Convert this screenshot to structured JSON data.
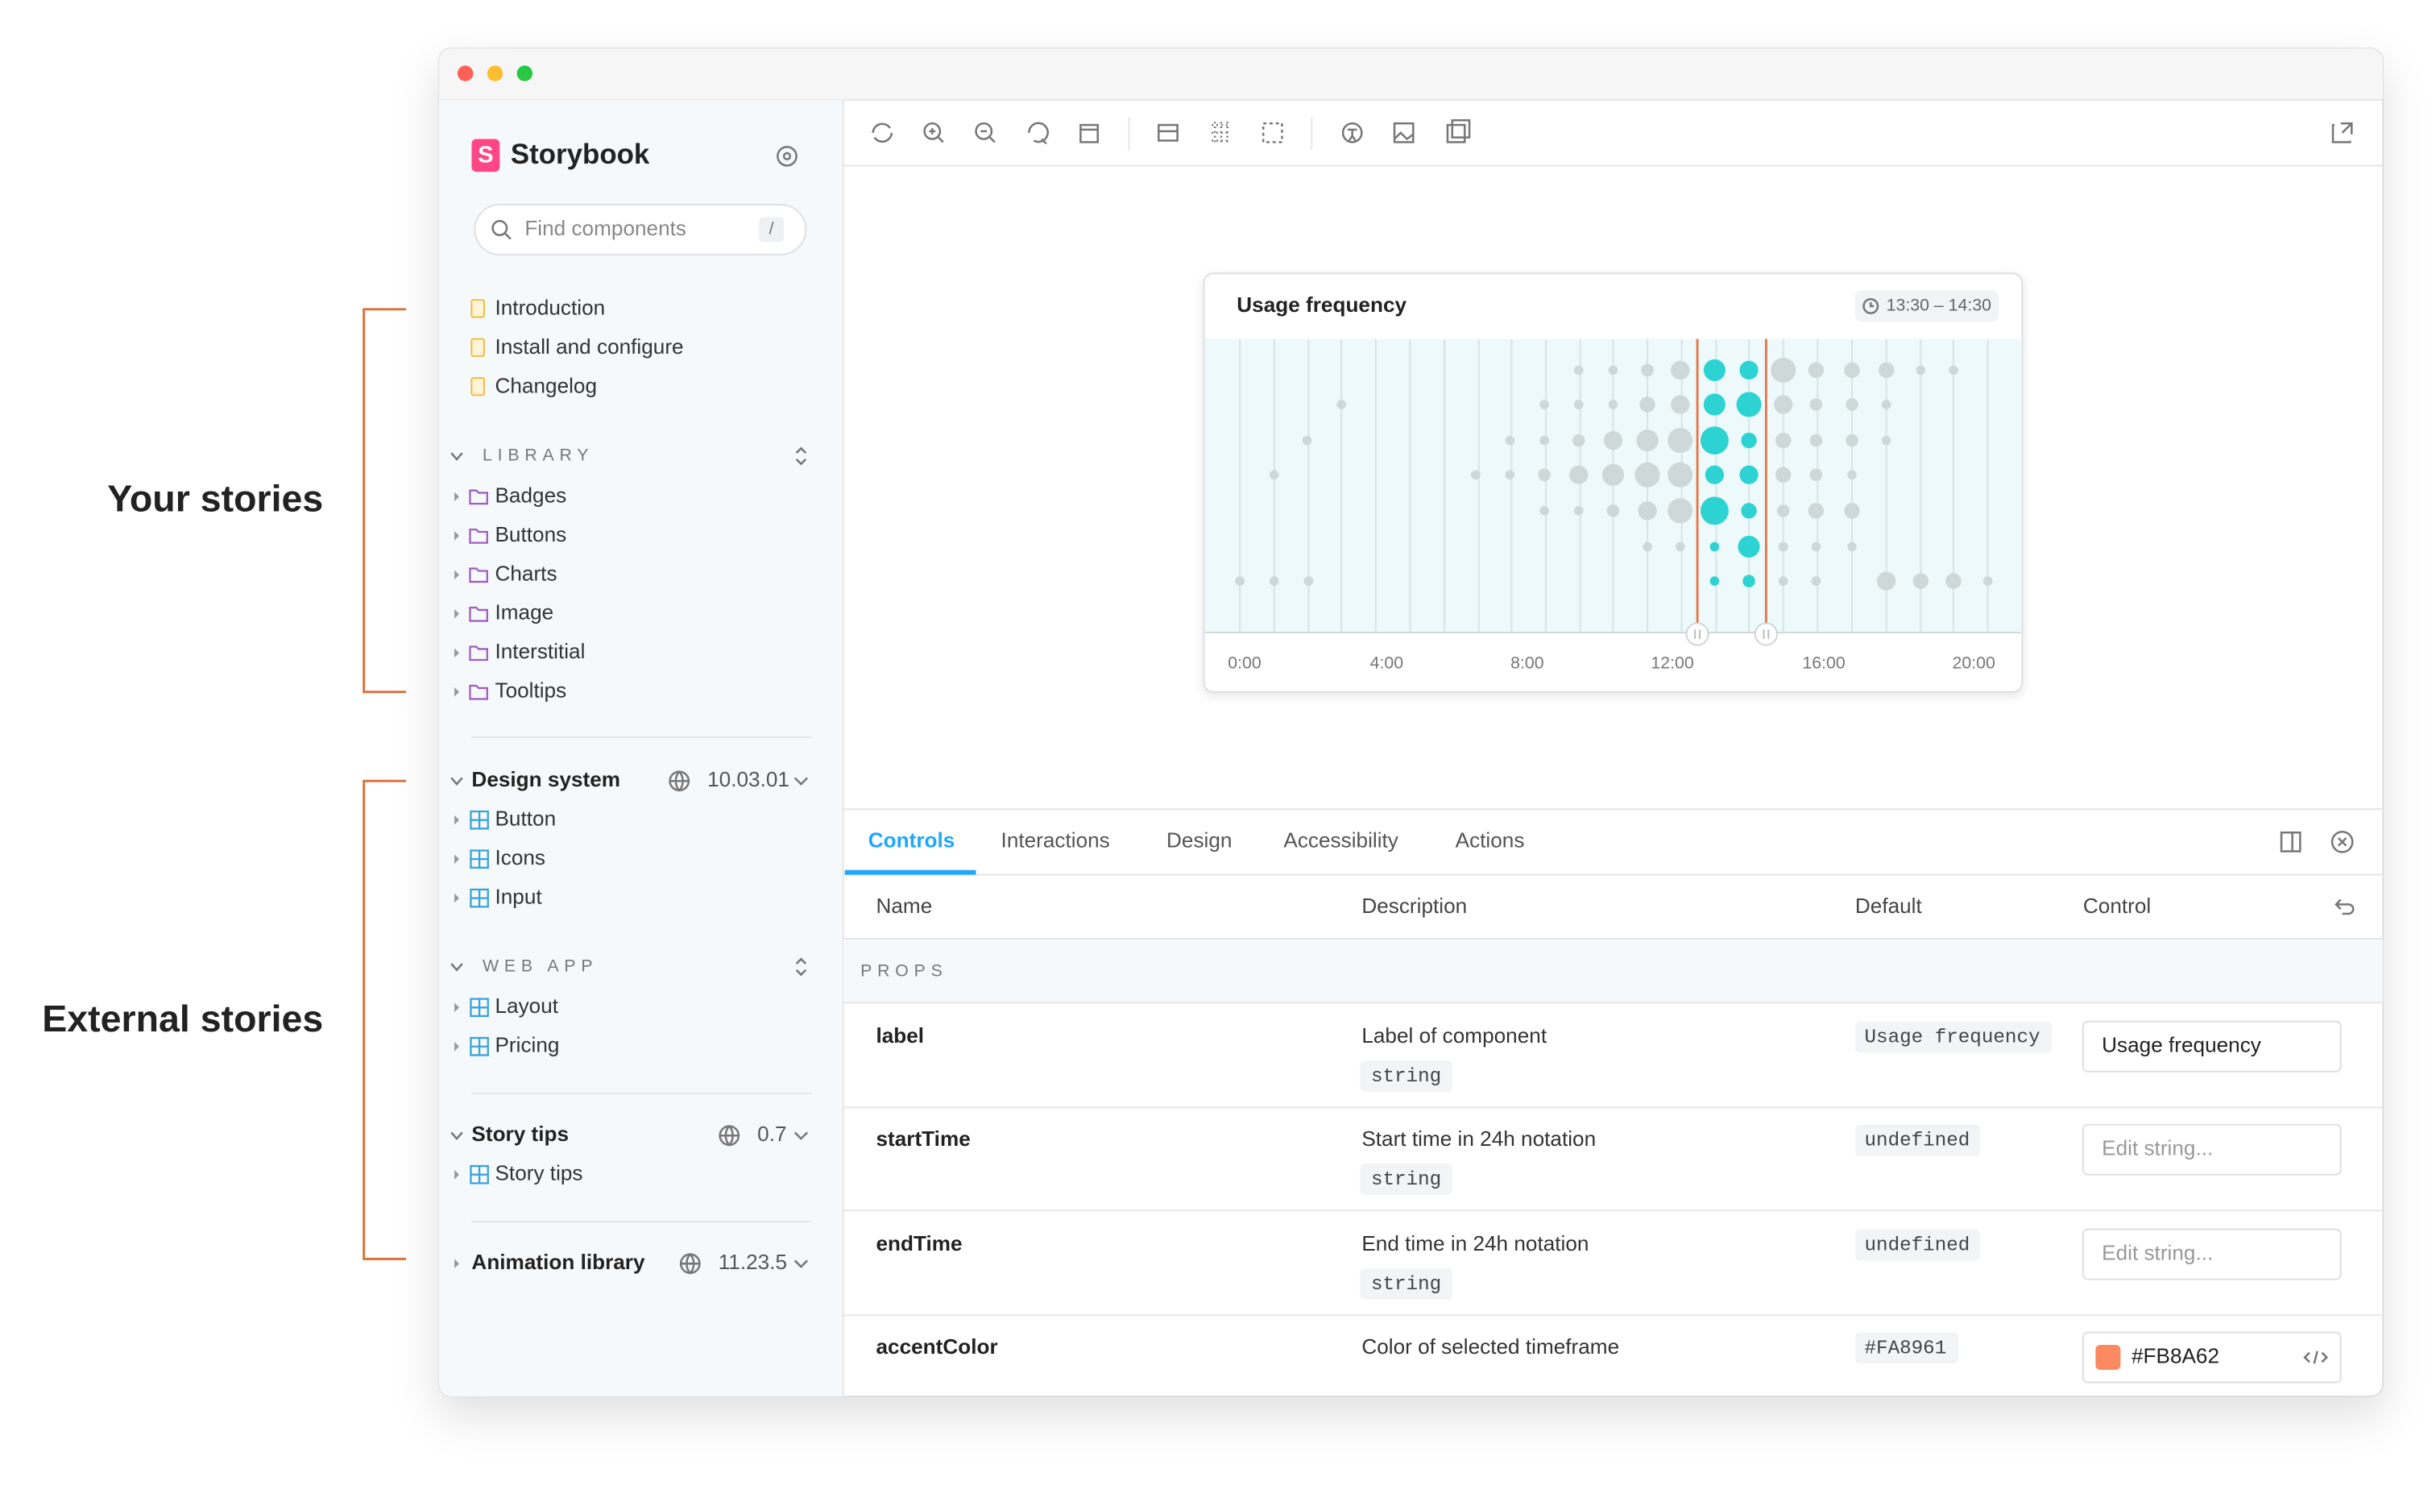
{
  "annotations": [
    "Your stories",
    "External stories"
  ],
  "sidebar": {
    "brand": "Storybook",
    "search_placeholder": "Find components",
    "search_shortcut": "/",
    "docs": [
      "Introduction",
      "Install and configure",
      "Changelog"
    ],
    "library": {
      "title": "LIBRARY",
      "items": [
        "Badges",
        "Buttons",
        "Charts",
        "Image",
        "Interstitial",
        "Tooltips"
      ]
    },
    "design_system": {
      "title": "Design system",
      "version": "10.03.01",
      "items": [
        "Button",
        "Icons",
        "Input"
      ]
    },
    "web_app": {
      "title": "WEB APP",
      "items": [
        "Layout",
        "Pricing"
      ]
    },
    "story_tips": {
      "title": "Story tips",
      "version": "0.7",
      "items": [
        "Story tips"
      ]
    },
    "animation_library": {
      "title": "Animation library",
      "version": "11.23.5"
    }
  },
  "preview": {
    "card_title": "Usage frequency",
    "time_range": "13:30 – 14:30",
    "x_labels": [
      "0:00",
      "4:00",
      "8:00",
      "12:00",
      "16:00",
      "20:00"
    ]
  },
  "addons": {
    "tabs": [
      "Controls",
      "Interactions",
      "Design",
      "Accessibility",
      "Actions"
    ],
    "columns": [
      "Name",
      "Description",
      "Default",
      "Control"
    ],
    "section": "PROPS",
    "rows": [
      {
        "name": "label",
        "description": "Label of component",
        "type": "string",
        "default": "Usage frequency",
        "control": "Usage frequency"
      },
      {
        "name": "startTime",
        "description": "Start time in 24h notation",
        "type": "string",
        "default": "undefined",
        "control": "Edit string..."
      },
      {
        "name": "endTime",
        "description": "End time in 24h notation",
        "type": "string",
        "default": "undefined",
        "control": "Edit string..."
      },
      {
        "name": "accentColor",
        "description": "Color of selected timeframe",
        "default": "#FA8961",
        "control": "#FB8A62"
      }
    ]
  }
}
